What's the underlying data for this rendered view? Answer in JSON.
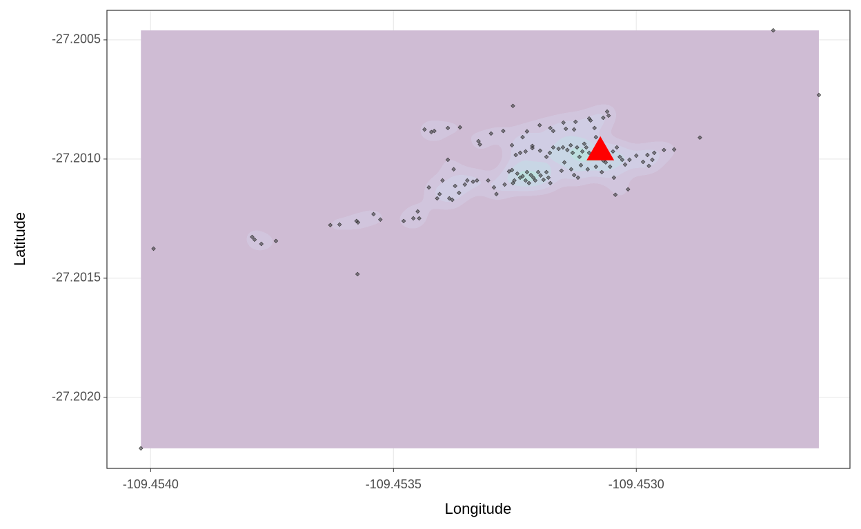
{
  "chart_data": {
    "type": "scatter",
    "x_label": "Longitude",
    "y_label": "Latitude",
    "xlim": [
      -109.45409,
      -109.45256
    ],
    "ylim": [
      -27.202298,
      -27.200376
    ],
    "xticks": [
      {
        "value": -109.454,
        "label": "-109.4540"
      },
      -109.4535,
      {
        "value": -109.453,
        "label": "-109.4530"
      }
    ],
    "yticks": [
      -27.2005,
      {
        "value": -27.201,
        "label": "-27.2010"
      },
      -27.2015,
      {
        "value": -27.202,
        "label": "-27.2020"
      }
    ],
    "grid": true,
    "point_color": "#333333",
    "density": true,
    "density_colors": [
      "#a080a8",
      "#a48fba",
      "#a29cc6",
      "#94adc9",
      "#84bfbe",
      "#7fc9b0",
      "#9bd39e",
      "#c2dc88",
      "#e2e176",
      "#f0e46a"
    ],
    "marker": {
      "x": -109.453074,
      "y": -27.200962,
      "color": "#ff0000",
      "shape": "triangle"
    },
    "x": [
      -109.45402,
      -109.453994,
      -109.452718,
      -109.452624,
      -109.453574,
      -109.453791,
      -109.453786,
      -109.453772,
      -109.453742,
      -109.45363,
      -109.453611,
      -109.453576,
      -109.453573,
      -109.453541,
      -109.453527,
      -109.453479,
      -109.453459,
      -109.453447,
      -109.453436,
      -109.453422,
      -109.453416,
      -109.453388,
      -109.453363,
      -109.453325,
      -109.453322,
      -109.453299,
      -109.453256,
      -109.453254,
      -109.453274,
      -109.453234,
      -109.453225,
      -109.453214,
      -109.453199,
      -109.453177,
      -109.453171,
      -109.45315,
      -109.453145,
      -109.453128,
      -109.453125,
      -109.453097,
      -109.453094,
      -109.45306,
      -109.453057,
      -109.453068,
      -109.453086,
      -109.453083,
      -109.452869,
      -109.452922,
      -109.452943,
      -109.452963,
      -109.452977,
      -109.452967,
      -109.452974,
      -109.452986,
      -109.453,
      -109.453014,
      -109.453023,
      -109.453034,
      -109.453048,
      -109.45306,
      -109.453068,
      -109.45308,
      -109.453088,
      -109.453097,
      -109.453103,
      -109.453107,
      -109.453111,
      -109.453117,
      -109.453122,
      -109.453131,
      -109.453135,
      -109.453142,
      -109.453151,
      -109.45316,
      -109.453171,
      -109.453178,
      -109.453185,
      -109.453198,
      -109.453214,
      -109.453228,
      -109.453239,
      -109.453248,
      -109.453262,
      -109.453256,
      -109.453245,
      -109.453239,
      -109.453234,
      -109.453228,
      -109.453225,
      -109.453221,
      -109.453217,
      -109.453212,
      -109.453208,
      -109.453202,
      -109.453197,
      -109.453191,
      -109.453185,
      -109.453181,
      -109.453177,
      -109.453254,
      -109.453251,
      -109.453271,
      -109.453288,
      -109.453293,
      -109.453305,
      -109.453328,
      -109.453336,
      -109.453348,
      -109.453353,
      -109.453365,
      -109.453373,
      -109.453379,
      -109.453385,
      -109.453376,
      -109.453388,
      -109.453405,
      -109.45341,
      -109.453427,
      -109.453399,
      -109.45345,
      -109.453148,
      -109.453154,
      -109.453134,
      -109.453128,
      -109.45312,
      -109.453114,
      -109.4531,
      -109.453083,
      -109.453071,
      -109.453063,
      -109.453054,
      -109.453046,
      -109.453043,
      -109.453017,
      -109.453029,
      -109.45304
    ],
    "values": [
      -27.202214,
      -27.201376,
      -27.20046,
      -27.200731,
      -27.201483,
      -27.201327,
      -27.201338,
      -27.201356,
      -27.201344,
      -27.201277,
      -27.201275,
      -27.20126,
      -27.201266,
      -27.201231,
      -27.201254,
      -27.20126,
      -27.201249,
      -27.201249,
      -27.200876,
      -27.200887,
      -27.200882,
      -27.20087,
      -27.200867,
      -27.200925,
      -27.200939,
      -27.200893,
      -27.200942,
      -27.200777,
      -27.200882,
      -27.200908,
      -27.200884,
      -27.200945,
      -27.200858,
      -27.20087,
      -27.200882,
      -27.200847,
      -27.200873,
      -27.200876,
      -27.200844,
      -27.20083,
      -27.200838,
      -27.200801,
      -27.200818,
      -27.200827,
      -27.20087,
      -27.200908,
      -27.20091,
      -27.20096,
      -27.200962,
      -27.200974,
      -27.200983,
      -27.201003,
      -27.201029,
      -27.201012,
      -27.200986,
      -27.201003,
      -27.201023,
      -27.200991,
      -27.200968,
      -27.200983,
      -27.201006,
      -27.200994,
      -27.200986,
      -27.200974,
      -27.200951,
      -27.200936,
      -27.200968,
      -27.200991,
      -27.200951,
      -27.200974,
      -27.200942,
      -27.200962,
      -27.200951,
      -27.200957,
      -27.200951,
      -27.200974,
      -27.200991,
      -27.200965,
      -27.200954,
      -27.200968,
      -27.200974,
      -27.200983,
      -27.201052,
      -27.201046,
      -27.201061,
      -27.201078,
      -27.201072,
      -27.20109,
      -27.201055,
      -27.201101,
      -27.201067,
      -27.201078,
      -27.20109,
      -27.201055,
      -27.201069,
      -27.201087,
      -27.201055,
      -27.201078,
      -27.201101,
      -27.201101,
      -27.20109,
      -27.201107,
      -27.201147,
      -27.201119,
      -27.20109,
      -27.20109,
      -27.201095,
      -27.20109,
      -27.201107,
      -27.201142,
      -27.201113,
      -27.201171,
      -27.201165,
      -27.201043,
      -27.201003,
      -27.201147,
      -27.201165,
      -27.201119,
      -27.20109,
      -27.20122,
      -27.201014,
      -27.201049,
      -27.201043,
      -27.201067,
      -27.201078,
      -27.201026,
      -27.201043,
      -27.201032,
      -27.201055,
      -27.201014,
      -27.201032,
      -27.201078,
      -27.20115,
      -27.201127,
      -27.201003,
      -27.200951
    ]
  }
}
